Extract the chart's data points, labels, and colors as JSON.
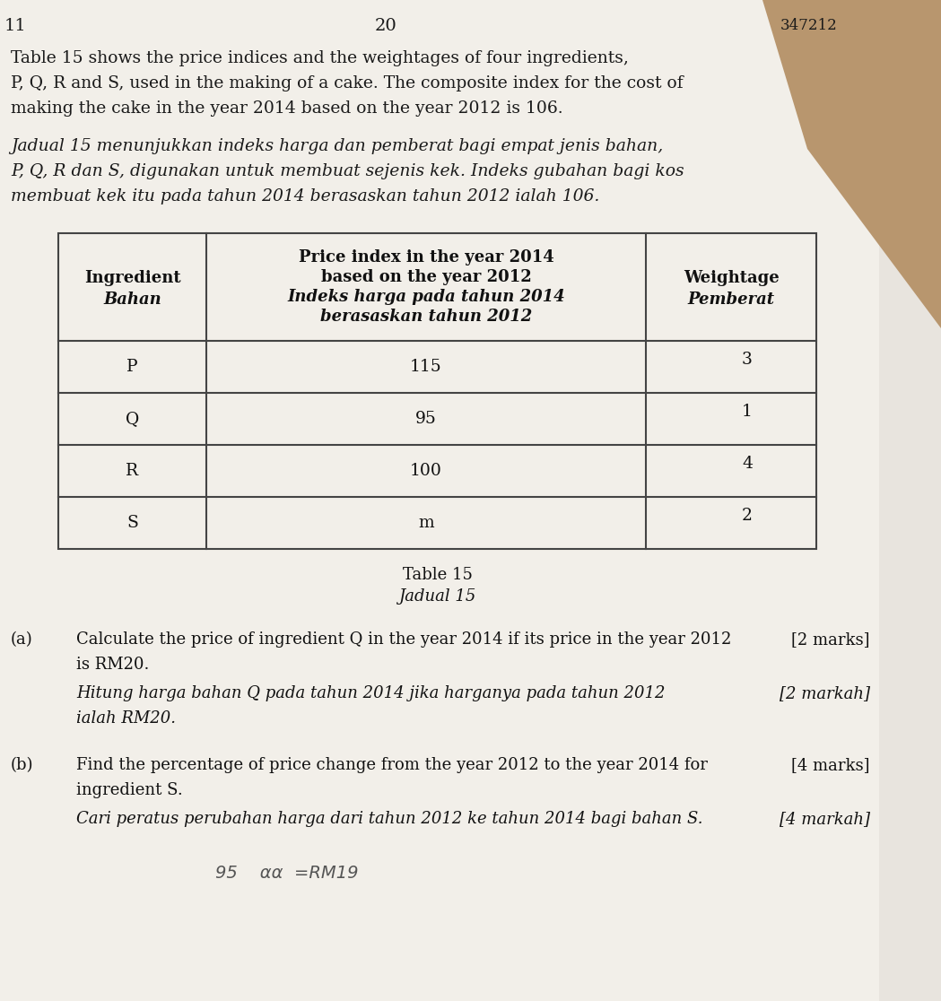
{
  "bg_color": "#e8e4de",
  "paper_color": "#f2efe9",
  "corner_color": "#b8966e",
  "page_number_top_center": "20",
  "page_number_top_left": "11",
  "page_number_top_right": "347212",
  "para1_en_line1": "Table 15 shows the price indices and the weightages of four ingredients,",
  "para1_en_line2": "P, Q, R and S, used in the making of a cake. The composite index for the cost of",
  "para1_en_line3": "making the cake in the year 2014 based on the year 2012 is 106.",
  "para1_ms_line1": "Jadual 15 menunjukkan indeks harga dan pemberat bagi empat jenis bahan,",
  "para1_ms_line2": "P, Q, R dan S, digunakan untuk membuat sejenis kek. Indeks gubahan bagi kos",
  "para1_ms_line3": "membuat kek itu pada tahun 2014 berasaskan tahun 2012 ialah 106.",
  "col1_header_en": "Ingredient",
  "col1_header_ms": "Bahan",
  "col2_header_en1": "Price index in the year 2014",
  "col2_header_en2": "based on the year 2012",
  "col2_header_ms1": "Indeks harga pada tahun 2014",
  "col2_header_ms2": "berasaskan tahun 2012",
  "col3_header_en": "Weightage",
  "col3_header_ms": "Pemberat",
  "rows": [
    {
      "c1": "P",
      "c2": "115",
      "c3": "3"
    },
    {
      "c1": "Q",
      "c2": "95",
      "c3": "1"
    },
    {
      "c1": "R",
      "c2": "100",
      "c3": "4"
    },
    {
      "c1": "S",
      "c2": "m",
      "c3": "2"
    }
  ],
  "caption_en": "Table 15",
  "caption_ms": "Jadual 15",
  "qa_label": "(a)",
  "qa_en1": "Calculate the price of ingredient Q in the year 2014 if its price in the year 2012",
  "qa_marks_en": "[2 marks]",
  "qa_en2": "is RM20.",
  "qa_ms1": "Hitung harga bahan Q pada tahun 2014 jika harganya pada tahun 2012",
  "qa_marks_ms": "[2 markah]",
  "qa_ms2": "ialah RM20.",
  "qb_label": "(b)",
  "qb_en1": "Find the percentage of price change from the year 2012 to the year 2014 for",
  "qb_marks_en": "[4 marks]",
  "qb_en2": "ingredient S.",
  "qb_ms1": "Cari peratus perubahan harga dari tahun 2012 ke tahun 2014 bagi bahan S.",
  "qb_marks_ms": "[4 markah]",
  "hw_line": "95    αα  =RM19"
}
